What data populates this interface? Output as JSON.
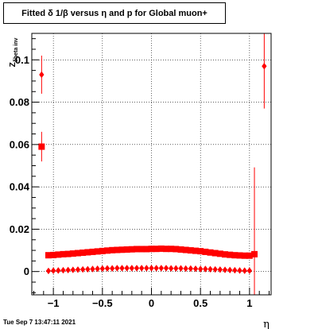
{
  "title": "Fitted δ 1/β versus η and p for Global muon+",
  "timestamp": "Tue Sep  7 13:47:11 2021",
  "colors": {
    "marker": "#ff0000",
    "axis": "#000000",
    "grid": "#000000",
    "background": "#ffffff"
  },
  "chart_data": {
    "type": "scatter",
    "title": "Fitted δ 1/β versus η and p for Global muon+",
    "xlabel": "η",
    "ylabel": "Z_{δbeta inv}",
    "xlim": [
      -1.22,
      1.22
    ],
    "ylim": [
      -0.011,
      0.1125
    ],
    "grid": true,
    "legend": "none",
    "x_ticks": [
      -1,
      -0.5,
      0,
      0.5,
      1
    ],
    "x_tick_labels": [
      "−1",
      "−0.5",
      "0",
      "0.5",
      "1"
    ],
    "y_ticks": [
      0,
      0.02,
      0.04,
      0.06,
      0.08,
      0.1
    ],
    "y_tick_labels": [
      "0",
      "0.02",
      "0.04",
      "0.06",
      "0.08",
      "0.1"
    ],
    "series": [
      {
        "marker": "square",
        "x": [
          -1.12,
          -1.05,
          -1.0,
          -0.95,
          -0.9,
          -0.85,
          -0.8,
          -0.75,
          -0.7,
          -0.65,
          -0.6,
          -0.55,
          -0.5,
          -0.45,
          -0.4,
          -0.35,
          -0.3,
          -0.25,
          -0.2,
          -0.15,
          -0.1,
          -0.05,
          0.0,
          0.05,
          0.1,
          0.15,
          0.2,
          0.25,
          0.3,
          0.35,
          0.4,
          0.45,
          0.5,
          0.55,
          0.6,
          0.65,
          0.7,
          0.75,
          0.8,
          0.85,
          0.9,
          0.95,
          1.0,
          1.05
        ],
        "y": [
          0.059,
          0.0077,
          0.0078,
          0.008,
          0.0082,
          0.0083,
          0.0085,
          0.0087,
          0.0089,
          0.0091,
          0.0093,
          0.0095,
          0.0097,
          0.0099,
          0.0101,
          0.0102,
          0.0103,
          0.0104,
          0.0105,
          0.0106,
          0.0106,
          0.0106,
          0.0107,
          0.0107,
          0.0108,
          0.0107,
          0.0107,
          0.0106,
          0.0104,
          0.0102,
          0.01,
          0.0098,
          0.0096,
          0.0093,
          0.009,
          0.0087,
          0.0084,
          0.0081,
          0.0079,
          0.0077,
          0.0076,
          0.0075,
          0.0075,
          0.0082
        ],
        "yerr": [
          0.007,
          0.0005,
          0.0005,
          0.0005,
          0.0005,
          0.0005,
          0.0005,
          0.0005,
          0.0005,
          0.0005,
          0.0005,
          0.0005,
          0.0005,
          0.0005,
          0.0005,
          0.0005,
          0.0005,
          0.0005,
          0.0005,
          0.0005,
          0.0005,
          0.0005,
          0.0005,
          0.0005,
          0.0005,
          0.0005,
          0.0005,
          0.0005,
          0.0005,
          0.0005,
          0.0005,
          0.0005,
          0.0005,
          0.0005,
          0.0005,
          0.0005,
          0.0005,
          0.0005,
          0.0005,
          0.0005,
          0.0005,
          0.0005,
          0.0005,
          0.041
        ]
      },
      {
        "marker": "diamond",
        "x": [
          -1.12,
          -1.05,
          -1.0,
          -0.95,
          -0.9,
          -0.85,
          -0.8,
          -0.75,
          -0.7,
          -0.65,
          -0.6,
          -0.55,
          -0.5,
          -0.45,
          -0.4,
          -0.35,
          -0.3,
          -0.25,
          -0.2,
          -0.15,
          -0.1,
          -0.05,
          0.0,
          0.05,
          0.1,
          0.15,
          0.2,
          0.25,
          0.3,
          0.35,
          0.4,
          0.45,
          0.5,
          0.55,
          0.6,
          0.65,
          0.7,
          0.75,
          0.8,
          0.85,
          0.9,
          0.95,
          1.0,
          1.15
        ],
        "y": [
          0.093,
          0.0003,
          0.0004,
          0.0005,
          0.0006,
          0.0007,
          0.0008,
          0.0009,
          0.001,
          0.0011,
          0.0012,
          0.0013,
          0.0014,
          0.0015,
          0.0015,
          0.0016,
          0.0016,
          0.0016,
          0.0016,
          0.0016,
          0.0016,
          0.0016,
          0.0016,
          0.0016,
          0.0016,
          0.0016,
          0.0015,
          0.0015,
          0.0015,
          0.0014,
          0.0014,
          0.0013,
          0.0012,
          0.0012,
          0.0011,
          0.001,
          0.0009,
          0.0008,
          0.0007,
          0.0006,
          0.0005,
          0.0004,
          0.0004,
          0.097
        ],
        "yerr": [
          0.009,
          0.0004,
          0.0004,
          0.0004,
          0.0004,
          0.0004,
          0.0004,
          0.0004,
          0.0004,
          0.0004,
          0.0004,
          0.0004,
          0.0004,
          0.0004,
          0.0004,
          0.0004,
          0.0004,
          0.0004,
          0.0004,
          0.0004,
          0.0004,
          0.0004,
          0.0004,
          0.0004,
          0.0004,
          0.0004,
          0.0004,
          0.0004,
          0.0004,
          0.0004,
          0.0004,
          0.0004,
          0.0004,
          0.0004,
          0.0004,
          0.0004,
          0.0004,
          0.0004,
          0.0004,
          0.0004,
          0.0004,
          0.0004,
          0.0004,
          0.02
        ]
      }
    ]
  }
}
